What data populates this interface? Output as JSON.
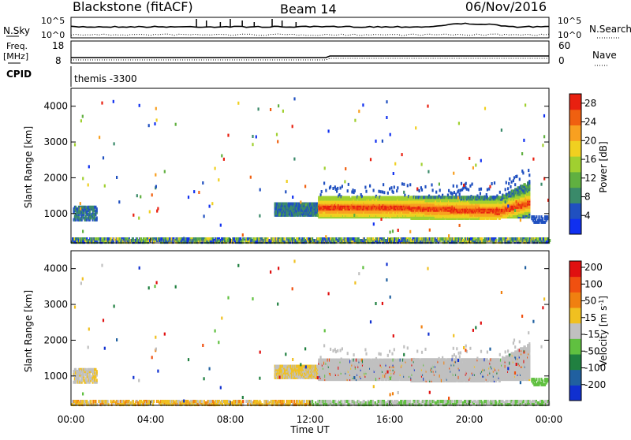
{
  "header": {
    "title_left": "Blackstone (fitACF)",
    "title_center": "Beam 14",
    "title_right": "06/Nov/2016"
  },
  "top_panels": {
    "nsky_label": "N.Sky",
    "nsearch_label": "N.Search",
    "nsky_ticks": [
      "10^5",
      "10^0"
    ],
    "nsearch_ticks": [
      "10^5",
      "10^0"
    ],
    "freq_label": "Freq.",
    "freq_unit": "[MHz]",
    "freq_ticks": [
      "18",
      "8"
    ],
    "nave_label": "Nave",
    "nave_ticks": [
      "60",
      "0"
    ],
    "cpid_label": "CPID",
    "cpid_value": "themis -3300"
  },
  "chart_data": [
    {
      "type": "heatmap",
      "name": "power",
      "title": "",
      "xlabel": "",
      "ylabel": "Slant Range [km]",
      "xlim": [
        0,
        24
      ],
      "ylim": [
        180,
        4500
      ],
      "yticks": [
        "1000",
        "2000",
        "3000",
        "4000"
      ],
      "colorbar": {
        "label": "Power [dB]",
        "ticks": [
          "4",
          "8",
          "12",
          "16",
          "20",
          "24",
          "28"
        ],
        "range": [
          0,
          30
        ],
        "colors": [
          "#1030f0",
          "#2050c0",
          "#3a8a6a",
          "#60b040",
          "#a0d030",
          "#f0d020",
          "#f8a020",
          "#f06010",
          "#e82010"
        ]
      },
      "features": [
        {
          "label": "ground scatter band",
          "x_range": [
            0,
            24
          ],
          "y_range": [
            200,
            400
          ]
        },
        {
          "label": "early echo",
          "x_range": [
            0.1,
            1.3
          ],
          "y_range": [
            850,
            1250
          ]
        },
        {
          "label": "main ionospheric echo",
          "x_range": [
            10.2,
            23.0
          ],
          "y_range": [
            900,
            1900
          ]
        }
      ]
    },
    {
      "type": "heatmap",
      "name": "velocity",
      "title": "",
      "xlabel": "Time UT",
      "ylabel": "Slant Range [km]",
      "xlim": [
        0,
        24
      ],
      "ylim": [
        180,
        4500
      ],
      "x_tick_labels": [
        "00:00",
        "04:00",
        "08:00",
        "12:00",
        "16:00",
        "20:00",
        "00:00"
      ],
      "yticks": [
        "1000",
        "2000",
        "3000",
        "4000"
      ],
      "colorbar": {
        "label": "Velocity [m s^-1]",
        "ticks": [
          "200",
          "100",
          "50",
          "15",
          "-15",
          "-50",
          "-100",
          "-200"
        ],
        "colors": [
          "#1030d0",
          "#2060a0",
          "#208040",
          "#60c040",
          "#c0c0c0",
          "#f0c020",
          "#f08010",
          "#f05010",
          "#e01010"
        ]
      },
      "features": [
        {
          "label": "ground scatter (grey)",
          "x_range": [
            12.5,
            23.0
          ],
          "y_range": [
            900,
            1900
          ]
        },
        {
          "label": "near-range flow (orange)",
          "x_range": [
            0,
            12
          ],
          "y_range": [
            200,
            450
          ]
        }
      ]
    }
  ]
}
